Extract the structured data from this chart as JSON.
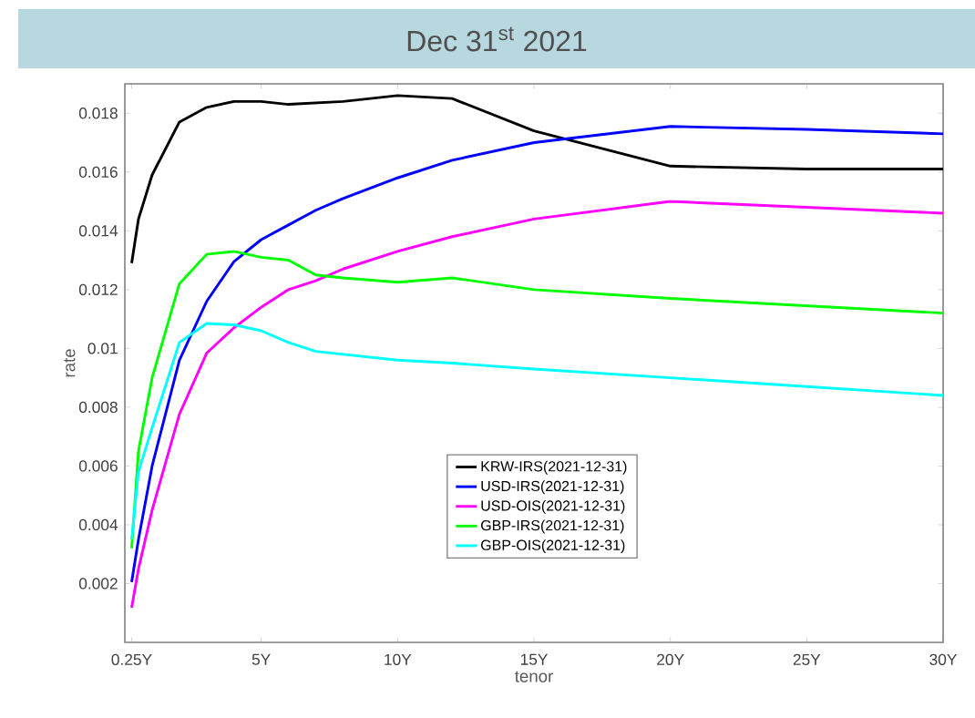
{
  "chart_data": {
    "type": "line",
    "title": "Dec 31$^{st}$ 2021",
    "xlabel": "tenor",
    "ylabel": "rate",
    "x": [
      0.25,
      0.5,
      1,
      2,
      3,
      4,
      5,
      6,
      7,
      8,
      10,
      12,
      15,
      20,
      25,
      30
    ],
    "series": [
      {
        "name": "KRW-IRS(2021-12-31)",
        "color": "#000000",
        "values": [
          0.0129,
          0.0144,
          0.0159,
          0.0177,
          0.0182,
          0.0184,
          0.0184,
          0.0183,
          0.01835,
          0.0184,
          0.0186,
          0.0185,
          0.0174,
          0.0162,
          0.0161,
          0.0161
        ]
      },
      {
        "name": "USD-IRS(2021-12-31)",
        "color": "#0000ff",
        "values": [
          0.00205,
          0.0035,
          0.006,
          0.0096,
          0.0116,
          0.01295,
          0.0137,
          0.0142,
          0.0147,
          0.0151,
          0.0158,
          0.0164,
          0.017,
          0.01755,
          0.01745,
          0.0173
        ]
      },
      {
        "name": "USD-OIS(2021-12-31)",
        "color": "#ff00ff",
        "values": [
          0.00118,
          0.0025,
          0.0045,
          0.00776,
          0.00984,
          0.0107,
          0.0114,
          0.012,
          0.0123,
          0.0127,
          0.0133,
          0.0138,
          0.0144,
          0.015,
          0.0148,
          0.0146
        ]
      },
      {
        "name": "GBP-IRS(2021-12-31)",
        "color": "#00ff00",
        "values": [
          0.0032,
          0.0065,
          0.009,
          0.0122,
          0.0132,
          0.0133,
          0.0131,
          0.013,
          0.0125,
          0.0124,
          0.01225,
          0.0124,
          0.012,
          0.0117,
          0.01145,
          0.0112
        ]
      },
      {
        "name": "GBP-OIS(2021-12-31)",
        "color": "#00ffff",
        "values": [
          0.0035,
          0.0058,
          0.0073,
          0.0102,
          0.01085,
          0.0108,
          0.0106,
          0.0102,
          0.0099,
          0.0098,
          0.0096,
          0.0095,
          0.0093,
          0.009,
          0.0087,
          0.0084
        ]
      }
    ],
    "xlim": [
      0,
      30
    ],
    "xticks": [
      {
        "value": 0.25,
        "label": "0.25Y"
      },
      {
        "value": 5,
        "label": "5Y"
      },
      {
        "value": 10,
        "label": "10Y"
      },
      {
        "value": 15,
        "label": "15Y"
      },
      {
        "value": 20,
        "label": "20Y"
      },
      {
        "value": 25,
        "label": "25Y"
      },
      {
        "value": 30,
        "label": "30Y"
      }
    ],
    "ylim": [
      0,
      0.019
    ],
    "yticks": [
      0.002,
      0.004,
      0.006,
      0.008,
      {
        "value": 0.01,
        "label": "0.01"
      },
      0.012,
      0.014,
      0.016,
      0.018
    ],
    "legend": "bottom",
    "grid": false,
    "marker": "none",
    "line_style": "solid"
  }
}
